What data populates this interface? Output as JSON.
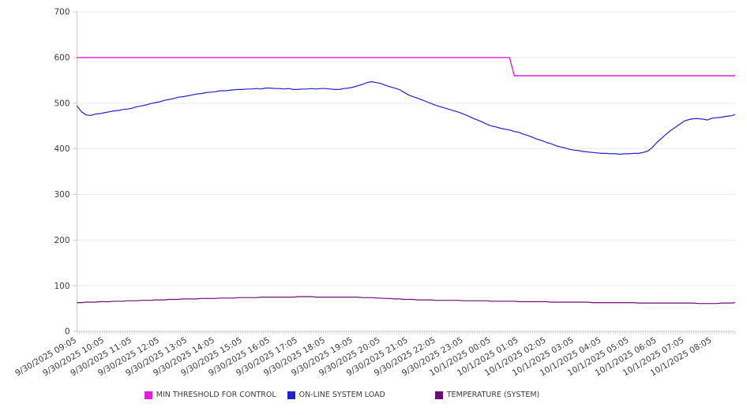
{
  "chart_data": {
    "type": "line",
    "title": "",
    "grid": "horizontal",
    "legend_position": "bottom",
    "y_axis": {
      "min": 0,
      "max": 700,
      "tick_step": 100,
      "ticks": [
        0,
        100,
        200,
        300,
        400,
        500,
        600,
        700
      ]
    },
    "x_axis": {
      "labels": [
        "9/30/2025 09:05",
        "9/30/2025 10:05",
        "9/30/2025 11:05",
        "9/30/2025 12:05",
        "9/30/2025 13:05",
        "9/30/2025 14:05",
        "9/30/2025 15:05",
        "9/30/2025 16:05",
        "9/30/2025 17:05",
        "9/30/2025 18:05",
        "9/30/2025 19:05",
        "9/30/2025 20:05",
        "9/30/2025 21:05",
        "9/30/2025 22:05",
        "9/30/2025 23:05",
        "10/1/2025 00:05",
        "10/1/2025 01:05",
        "10/1/2025 02:05",
        "10/1/2025 03:05",
        "10/1/2025 04:05",
        "10/1/2025 05:05",
        "10/1/2025 06:05",
        "10/1/2025 07:05",
        "10/1/2025 08:05"
      ],
      "samples_per_hour": 6,
      "minor_tick_interval_minutes": 5
    },
    "series": [
      {
        "name": "MIN THRESHOLD FOR CONTROL",
        "color": "#e619e0",
        "values": [
          600,
          600,
          600,
          600,
          600,
          600,
          600,
          600,
          600,
          600,
          600,
          600,
          600,
          600,
          600,
          600,
          600,
          600,
          600,
          600,
          600,
          600,
          600,
          600,
          600,
          600,
          600,
          600,
          600,
          600,
          600,
          600,
          600,
          600,
          600,
          600,
          600,
          600,
          600,
          600,
          600,
          600,
          600,
          600,
          600,
          600,
          600,
          600,
          600,
          600,
          600,
          600,
          600,
          600,
          600,
          600,
          600,
          600,
          600,
          600,
          600,
          600,
          600,
          600,
          600,
          600,
          600,
          600,
          600,
          600,
          600,
          600,
          600,
          600,
          600,
          600,
          600,
          600,
          600,
          600,
          600,
          600,
          600,
          600,
          600,
          600,
          600,
          600,
          600,
          600,
          600,
          600,
          600,
          600,
          600,
          560,
          560,
          560,
          560,
          560,
          560,
          560,
          560,
          560,
          560,
          560,
          560,
          560,
          560,
          560,
          560,
          560,
          560,
          560,
          560,
          560,
          560,
          560,
          560,
          560,
          560,
          560,
          560,
          560,
          560,
          560,
          560,
          560,
          560,
          560,
          560,
          560,
          560,
          560,
          560,
          560,
          560,
          560,
          560,
          560,
          560,
          560,
          560,
          560
        ]
      },
      {
        "name": "ON-LINE SYSTEM LOAD",
        "color": "#2222cd",
        "values": [
          494,
          481,
          474,
          473,
          476,
          477,
          479,
          481,
          483,
          484,
          486,
          487,
          489,
          492,
          494,
          496,
          499,
          501,
          503,
          506,
          508,
          510,
          513,
          514,
          516,
          518,
          520,
          521,
          523,
          524,
          525,
          527,
          527,
          528,
          529,
          530,
          530,
          531,
          531,
          532,
          531,
          533,
          533,
          532,
          532,
          531,
          532,
          530,
          530,
          531,
          531,
          532,
          531,
          532,
          532,
          531,
          530,
          530,
          532,
          533,
          535,
          538,
          541,
          545,
          547,
          545,
          543,
          539,
          536,
          533,
          530,
          524,
          518,
          514,
          511,
          507,
          503,
          499,
          495,
          492,
          489,
          486,
          483,
          480,
          476,
          472,
          467,
          463,
          459,
          454,
          450,
          448,
          445,
          443,
          441,
          438,
          436,
          432,
          429,
          425,
          421,
          418,
          414,
          411,
          407,
          404,
          402,
          399,
          397,
          396,
          394,
          393,
          392,
          391,
          390,
          390,
          389,
          389,
          388,
          389,
          389,
          390,
          390,
          392,
          395,
          403,
          414,
          423,
          432,
          440,
          447,
          454,
          461,
          464,
          466,
          466,
          465,
          463,
          467,
          468,
          469,
          471,
          472,
          475
        ]
      },
      {
        "name": "TEMPERATURE (SYSTEM)",
        "color": "#6e0b79",
        "values": [
          63,
          63,
          64,
          64,
          64,
          65,
          65,
          65,
          66,
          66,
          66,
          67,
          67,
          67,
          68,
          68,
          68,
          69,
          69,
          69,
          70,
          70,
          70,
          71,
          71,
          71,
          71,
          72,
          72,
          72,
          72,
          73,
          73,
          73,
          73,
          74,
          74,
          74,
          74,
          74,
          75,
          75,
          75,
          75,
          75,
          75,
          75,
          75,
          76,
          76,
          76,
          76,
          75,
          75,
          75,
          75,
          75,
          75,
          75,
          75,
          75,
          75,
          74,
          74,
          74,
          73,
          73,
          72,
          72,
          71,
          71,
          70,
          70,
          70,
          69,
          69,
          69,
          69,
          68,
          68,
          68,
          68,
          68,
          68,
          67,
          67,
          67,
          67,
          67,
          67,
          66,
          66,
          66,
          66,
          66,
          66,
          65,
          65,
          65,
          65,
          65,
          65,
          65,
          64,
          64,
          64,
          64,
          64,
          64,
          64,
          64,
          64,
          63,
          63,
          63,
          63,
          63,
          63,
          63,
          63,
          63,
          63,
          62,
          62,
          62,
          62,
          62,
          62,
          62,
          62,
          62,
          62,
          62,
          62,
          62,
          61,
          61,
          61,
          61,
          61,
          62,
          62,
          62,
          63
        ]
      }
    ]
  },
  "style": {
    "grid_color": "#eaeaea",
    "axis_color": "#c9c9c9",
    "tick_label_color": "#3c3c3c"
  }
}
